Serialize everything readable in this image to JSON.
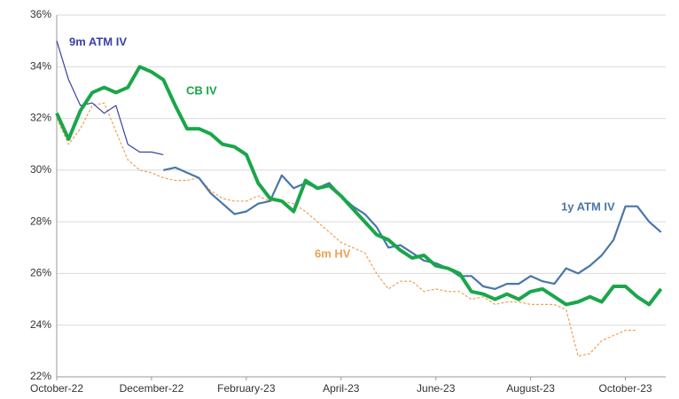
{
  "chart_data": {
    "type": "line",
    "x": [
      0,
      0.25,
      0.5,
      0.75,
      1,
      1.25,
      1.5,
      1.75,
      2,
      2.25,
      2.5,
      2.75,
      3,
      3.25,
      3.5,
      3.75,
      4,
      4.25,
      4.5,
      4.75,
      5,
      5.25,
      5.5,
      5.75,
      6,
      6.25,
      6.5,
      6.75,
      7,
      7.25,
      7.5,
      7.75,
      8,
      8.25,
      8.5,
      8.75,
      9,
      9.25,
      9.5,
      9.75,
      10,
      10.25,
      10.5,
      10.75,
      11,
      11.25,
      11.5,
      11.75,
      12,
      12.25,
      12.5,
      12.75
    ],
    "xlim": [
      0,
      12.85
    ],
    "xticks": [
      {
        "value": 0,
        "label": "October-22"
      },
      {
        "value": 2,
        "label": "December-22"
      },
      {
        "value": 4,
        "label": "February-23"
      },
      {
        "value": 6,
        "label": "April-23"
      },
      {
        "value": 8,
        "label": "June-23"
      },
      {
        "value": 10,
        "label": "August-23"
      },
      {
        "value": 12,
        "label": "October-23"
      }
    ],
    "ylim": [
      22,
      36
    ],
    "yticks": [
      {
        "value": 22,
        "label": "22%"
      },
      {
        "value": 24,
        "label": "24%"
      },
      {
        "value": 26,
        "label": "26%"
      },
      {
        "value": 28,
        "label": "28%"
      },
      {
        "value": 30,
        "label": "30%"
      },
      {
        "value": 32,
        "label": "32%"
      },
      {
        "value": 34,
        "label": "34%"
      },
      {
        "value": 36,
        "label": "36%"
      }
    ],
    "grid": true,
    "series": [
      {
        "name": "6m HV",
        "color": "#f0a055",
        "dash": true,
        "width": 1.2,
        "values": [
          32.0,
          31.0,
          31.6,
          32.5,
          32.6,
          31.5,
          30.4,
          30.0,
          29.9,
          29.7,
          29.6,
          29.6,
          29.7,
          29.2,
          28.9,
          28.8,
          28.8,
          29.0,
          28.8,
          28.8,
          28.7,
          28.4,
          28.0,
          27.6,
          27.2,
          27.0,
          26.8,
          26.0,
          25.4,
          25.7,
          25.7,
          25.3,
          25.4,
          25.3,
          25.3,
          25.0,
          25.1,
          24.8,
          24.9,
          24.9,
          24.8,
          24.8,
          24.8,
          24.6,
          22.8,
          22.9,
          23.4,
          23.6,
          23.8,
          23.8,
          null,
          null
        ]
      },
      {
        "name": "9m ATM IV",
        "color": "#3a3fa6",
        "dash": false,
        "width": 1.2,
        "values": [
          35.0,
          33.5,
          32.5,
          32.6,
          32.2,
          32.5,
          31.0,
          30.7,
          30.7,
          30.6,
          null,
          null,
          null,
          null,
          null,
          null,
          null,
          null,
          null,
          null,
          null,
          null,
          null,
          null,
          null,
          null,
          null,
          null,
          null,
          null,
          null,
          null,
          null,
          null,
          null,
          null,
          null,
          null,
          null,
          null,
          null,
          null,
          null,
          null,
          null,
          null,
          null,
          null,
          null,
          null,
          null,
          null
        ]
      },
      {
        "name": "1y ATM IV",
        "color": "#4a76a8",
        "dash": false,
        "width": 2.2,
        "values": [
          null,
          null,
          null,
          null,
          null,
          null,
          null,
          null,
          null,
          30.0,
          30.1,
          29.9,
          29.7,
          29.1,
          28.7,
          28.3,
          28.4,
          28.7,
          28.8,
          29.8,
          29.3,
          29.5,
          29.3,
          29.5,
          29.0,
          28.6,
          28.3,
          27.8,
          27.0,
          27.1,
          26.8,
          26.5,
          26.4,
          26.2,
          25.9,
          25.9,
          25.5,
          25.4,
          25.6,
          25.6,
          25.9,
          25.7,
          25.6,
          26.2,
          26.0,
          26.3,
          26.7,
          27.3,
          28.6,
          28.6,
          28.0,
          27.6
        ]
      },
      {
        "name": "CB IV",
        "color": "#1aa64a",
        "dash": false,
        "width": 4,
        "values": [
          32.2,
          31.2,
          32.3,
          33.0,
          33.2,
          33.0,
          33.2,
          34.0,
          33.8,
          33.5,
          32.5,
          31.6,
          31.6,
          31.4,
          31.0,
          30.9,
          30.6,
          29.5,
          28.9,
          28.8,
          28.4,
          29.6,
          29.3,
          29.4,
          29.0,
          28.5,
          28.0,
          27.5,
          27.3,
          26.9,
          26.6,
          26.7,
          26.3,
          26.2,
          26.0,
          25.3,
          25.2,
          25.0,
          25.2,
          25.0,
          25.3,
          25.4,
          25.1,
          24.8,
          24.9,
          25.1,
          24.9,
          25.5,
          25.5,
          25.1,
          24.8,
          25.4
        ]
      }
    ]
  }
}
